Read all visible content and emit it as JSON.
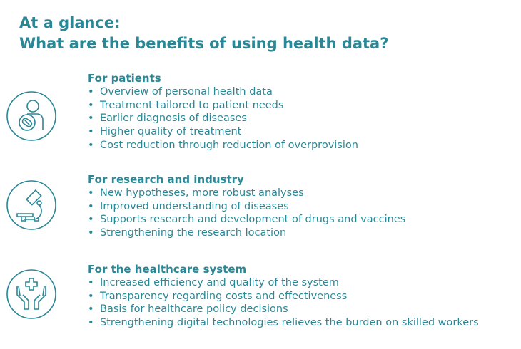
{
  "title": {
    "line1": "At a glance:",
    "line2": "What are the benefits of using health data?"
  },
  "accent_color": "#2a8795",
  "groups": [
    {
      "icon": "patient-pill-icon",
      "heading": "For patients",
      "items": [
        "Overview of personal health data",
        "Treatment tailored to patient needs",
        "Earlier diagnosis of diseases",
        "Higher quality of treatment",
        "Cost reduction through reduction of overprovision"
      ]
    },
    {
      "icon": "microscope-icon",
      "heading": "For research and industry",
      "items": [
        "New hypotheses, more robust analyses",
        "Improved understanding of diseases",
        "Supports research and development of drugs and vaccines",
        "Strengthening the research location"
      ]
    },
    {
      "icon": "hands-cross-icon",
      "heading": "For the healthcare system",
      "items": [
        "Increased efficiency and quality of the system",
        "Transparency regarding costs and effectiveness",
        "Basis for healthcare policy decisions",
        "Strengthening digital technologies relieves the burden on skilled workers"
      ]
    }
  ]
}
